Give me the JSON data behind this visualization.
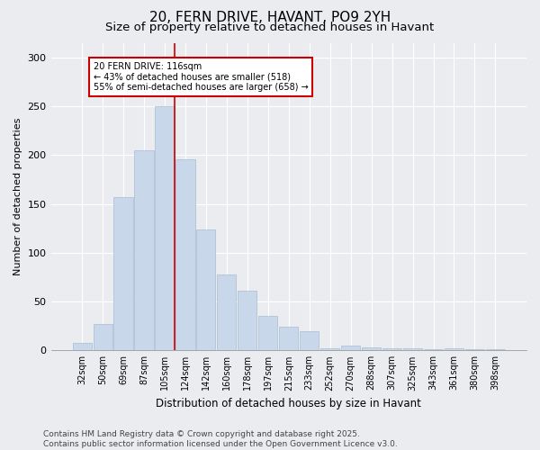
{
  "title": "20, FERN DRIVE, HAVANT, PO9 2YH",
  "subtitle": "Size of property relative to detached houses in Havant",
  "xlabel": "Distribution of detached houses by size in Havant",
  "ylabel": "Number of detached properties",
  "categories": [
    "32sqm",
    "50sqm",
    "69sqm",
    "87sqm",
    "105sqm",
    "124sqm",
    "142sqm",
    "160sqm",
    "178sqm",
    "197sqm",
    "215sqm",
    "233sqm",
    "252sqm",
    "270sqm",
    "288sqm",
    "307sqm",
    "325sqm",
    "343sqm",
    "361sqm",
    "380sqm",
    "398sqm"
  ],
  "values": [
    8,
    27,
    157,
    205,
    250,
    196,
    124,
    78,
    61,
    35,
    24,
    20,
    2,
    5,
    3,
    2,
    2,
    1,
    2,
    1,
    1
  ],
  "bar_color": "#c8d8ea",
  "bar_edgecolor": "#aabdd4",
  "vline_color": "#cc0000",
  "annotation_text": "20 FERN DRIVE: 116sqm\n← 43% of detached houses are smaller (518)\n55% of semi-detached houses are larger (658) →",
  "annotation_box_color": "#ffffff",
  "annotation_box_edgecolor": "#cc0000",
  "ylim": [
    0,
    315
  ],
  "yticks": [
    0,
    50,
    100,
    150,
    200,
    250,
    300
  ],
  "footer": "Contains HM Land Registry data © Crown copyright and database right 2025.\nContains public sector information licensed under the Open Government Licence v3.0.",
  "bg_color": "#eaecf0",
  "plot_bg_color": "#eaecf0",
  "grid_color": "#ffffff",
  "title_fontsize": 11,
  "subtitle_fontsize": 9.5,
  "axis_fontsize": 8,
  "tick_fontsize": 7,
  "footer_fontsize": 6.5
}
